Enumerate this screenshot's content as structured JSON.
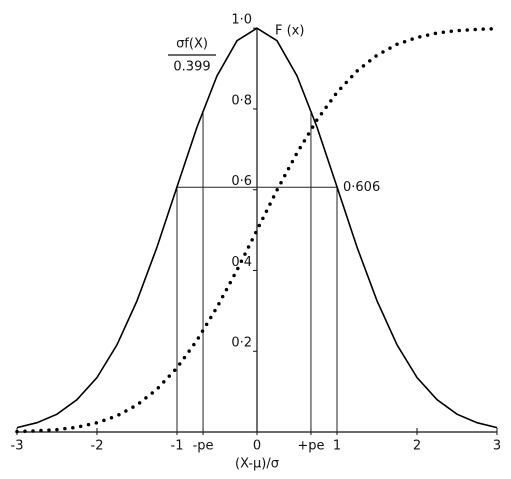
{
  "chart_data": {
    "type": "line",
    "y_label_numerator": "σf(X)",
    "y_label_denominator": "0.399",
    "x_label": "(X-μ)/σ",
    "x": [
      -3,
      -2.75,
      -2.5,
      -2.25,
      -2,
      -1.75,
      -1.5,
      -1.25,
      -1,
      -0.75,
      -0.5,
      -0.25,
      0,
      0.25,
      0.5,
      0.75,
      1,
      1.25,
      1.5,
      1.75,
      2,
      2.25,
      2.5,
      2.75,
      3
    ],
    "series": [
      {
        "color": "#000000",
        "style": "solid",
        "values": [
          0.011,
          0.023,
          0.044,
          0.08,
          0.135,
          0.216,
          0.325,
          0.458,
          0.607,
          0.755,
          0.882,
          0.969,
          1,
          0.969,
          0.882,
          0.755,
          0.607,
          0.458,
          0.325,
          0.216,
          0.135,
          0.08,
          0.044,
          0.023,
          0.011
        ]
      },
      {
        "name": "F (x)",
        "color": "#000000",
        "style": "dotted",
        "values": [
          0.001,
          0.003,
          0.006,
          0.012,
          0.023,
          0.04,
          0.067,
          0.106,
          0.159,
          0.227,
          0.309,
          0.401,
          0.5,
          0.599,
          0.691,
          0.773,
          0.841,
          0.894,
          0.933,
          0.96,
          0.977,
          0.988,
          0.994,
          0.997,
          0.999
        ]
      }
    ],
    "annotation": {
      "value": 0.606,
      "label": "0·606"
    },
    "xlim": [
      -3,
      3
    ],
    "ylim": [
      0,
      1.05
    ],
    "xticks": [
      -3,
      -2,
      -1,
      {
        "value": -0.6745,
        "label": "-pe"
      },
      0,
      {
        "value": 0.6745,
        "label": "+pe"
      },
      1,
      2,
      3
    ],
    "yticks": [
      {
        "value": 0.2,
        "label": "0·2"
      },
      {
        "value": 0.4,
        "label": "0·4"
      },
      {
        "value": 0.6,
        "label": "0·6"
      },
      {
        "value": 0.8,
        "label": "0·8"
      },
      {
        "value": 1.0,
        "label": "1·0"
      }
    ]
  }
}
